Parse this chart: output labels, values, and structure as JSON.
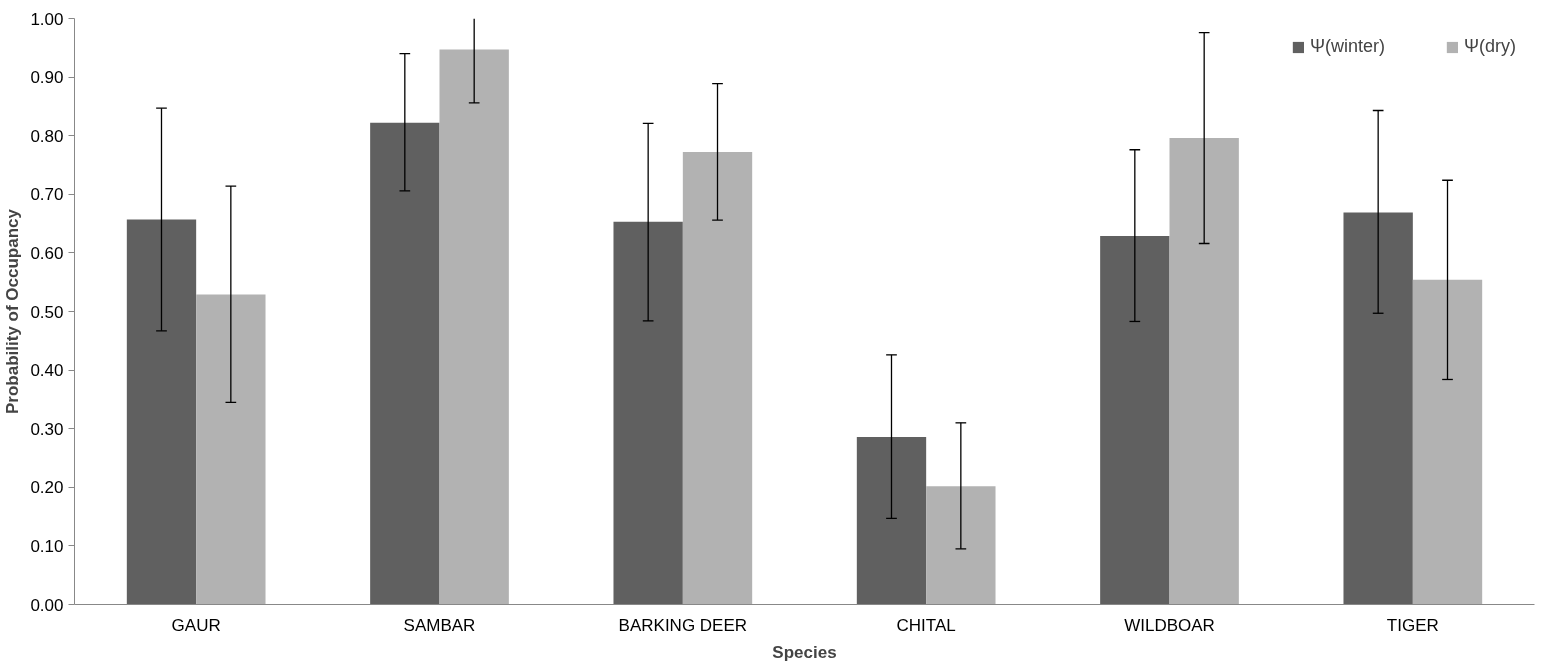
{
  "chart_data": {
    "type": "bar",
    "xlabel": "Species",
    "ylabel": "Probability of Occupancy",
    "categories": [
      "GAUR",
      "SAMBAR",
      "BARKING DEER",
      "CHITAL",
      "WILDBOAR",
      "TIGER"
    ],
    "series": [
      {
        "name": "Ψ(winter)",
        "color": "#606060",
        "values": [
          0.657,
          0.822,
          0.653,
          0.286,
          0.629,
          0.669
        ],
        "errors": [
          [
            0.467,
            0.847
          ],
          [
            0.706,
            0.94
          ],
          [
            0.484,
            0.821
          ],
          [
            0.147,
            0.426
          ],
          [
            0.483,
            0.776
          ],
          [
            0.497,
            0.843
          ]
        ]
      },
      {
        "name": "Ψ(dry)",
        "color": "#b2b2b2",
        "values": [
          0.529,
          0.947,
          0.772,
          0.202,
          0.796,
          0.554
        ],
        "errors": [
          [
            0.345,
            0.714
          ],
          [
            0.856,
            1.0
          ],
          [
            0.656,
            0.889
          ],
          [
            0.095,
            0.31
          ],
          [
            0.616,
            0.976
          ],
          [
            0.384,
            0.724
          ]
        ]
      }
    ],
    "ylim": [
      0,
      1
    ],
    "yticks": [
      {
        "value": 0,
        "label": "0.00"
      },
      {
        "value": 0.1,
        "label": "0.10"
      },
      {
        "value": 0.2,
        "label": "0.20"
      },
      {
        "value": 0.3,
        "label": "0.30"
      },
      {
        "value": 0.4,
        "label": "0.40"
      },
      {
        "value": 0.5,
        "label": "0.50"
      },
      {
        "value": 0.6,
        "label": "0.60"
      },
      {
        "value": 0.7,
        "label": "0.70"
      },
      {
        "value": 0.8,
        "label": "0.80"
      },
      {
        "value": 0.9,
        "label": "0.90"
      },
      {
        "value": 1,
        "label": "1.00"
      }
    ],
    "grid": false,
    "legend": "top right"
  }
}
